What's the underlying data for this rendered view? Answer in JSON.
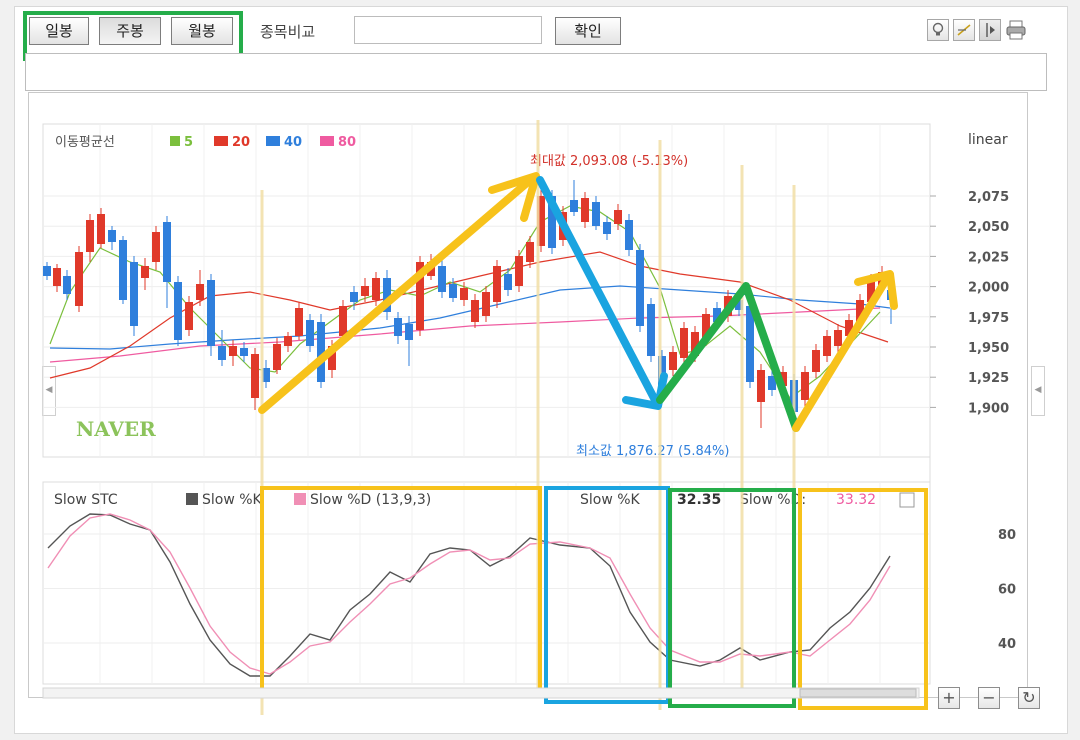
{
  "toolbar": {
    "period_buttons": [
      "일봉",
      "주봉",
      "월봉"
    ],
    "active_period": "주봉",
    "compare_label": "종목비교",
    "compare_input_value": "",
    "confirm_label": "확인",
    "tool_icons": [
      "bulb-icon",
      "draw-line-icon",
      "crosshair-icon",
      "print-icon"
    ]
  },
  "price_chart": {
    "ma_title": "이동평균선",
    "ma_legend": [
      {
        "label": "5",
        "color": "#7bbf3d"
      },
      {
        "label": "20",
        "color": "#e0392a"
      },
      {
        "label": "40",
        "color": "#2f7fdc"
      },
      {
        "label": "80",
        "color": "#ef5ba0"
      }
    ],
    "scale_label": "linear",
    "y_ticks": [
      "2,075",
      "2,050",
      "2,025",
      "2,000",
      "1,975",
      "1,950",
      "1,925",
      "1,900"
    ],
    "max_label": "최대값 2,093.08 (-5.13%)",
    "min_label": "최소값 1,876.27 (5.84%)",
    "watermark": "NAVER",
    "up_color": "#e0392a",
    "down_color": "#2f7fdc"
  },
  "stochastic": {
    "title": "Slow STC",
    "k_legend": "Slow %K",
    "d_legend": "Slow %D (13,9,3)",
    "k_readout_label": "Slow %K",
    "k_readout_value": "32.35",
    "d_readout_label": "Slow %D:",
    "d_readout_value": "33.32",
    "y_ticks": [
      "80",
      "60",
      "40"
    ],
    "k_color": "#555555",
    "d_color": "#f08fb5"
  },
  "annotation_colors": {
    "yellow": "#f7c21b",
    "blue": "#1aa4e0",
    "green": "#25ad4a"
  },
  "zoom_buttons": [
    "+",
    "−",
    "↻"
  ]
}
